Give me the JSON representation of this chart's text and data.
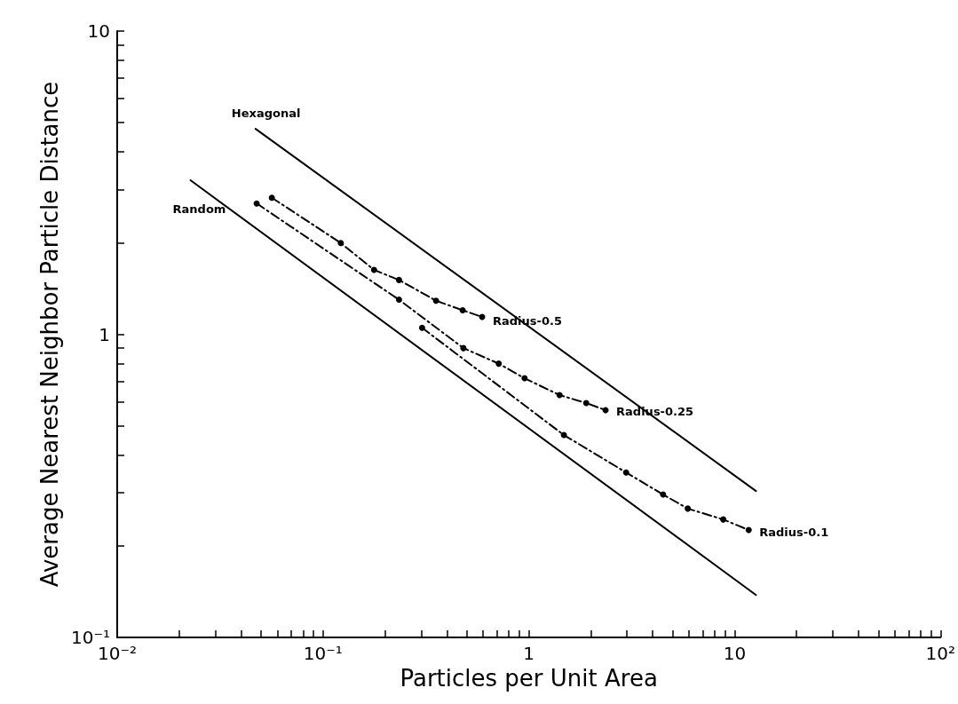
{
  "chart_data": {
    "type": "line",
    "xlabel": "Particles per Unit Area",
    "ylabel": "Average Nearest Neighbor Particle Distance",
    "log": "xy",
    "grid": false,
    "xlim": [
      0.01,
      100
    ],
    "xticks": [
      {
        "value": 0.01,
        "label": "10⁻²"
      },
      {
        "value": 0.1,
        "label": "10⁻¹"
      },
      1,
      10,
      {
        "value": 100,
        "label": "10²"
      }
    ],
    "ylim": [
      0.1,
      10
    ],
    "yticks": [
      {
        "value": 0.1,
        "label": "10⁻¹"
      },
      1,
      10
    ],
    "series": [
      {
        "name": "Hexagonal",
        "color": "#000000",
        "x": [
          0.047,
          12.7
        ],
        "values": [
          4.76,
          0.304
        ],
        "marker": "none",
        "line_style": "solid"
      },
      {
        "name": "Random",
        "color": "#000000",
        "x": [
          0.0227,
          12.7
        ],
        "values": [
          3.22,
          0.138
        ],
        "marker": "none",
        "line_style": "solid"
      },
      {
        "name": "Radius-0.5",
        "color": "#000000",
        "x": [
          0.0564,
          0.122,
          0.177,
          0.234,
          0.354,
          0.477,
          0.593
        ],
        "values": [
          2.82,
          2.0,
          1.63,
          1.51,
          1.29,
          1.2,
          1.14
        ],
        "marker": "circle",
        "line_style": "dashed"
      },
      {
        "name": "Radius-0.25",
        "color": "#000000",
        "x": [
          0.0476,
          0.234,
          0.481,
          0.714,
          0.953,
          1.41,
          1.9,
          2.36
        ],
        "values": [
          2.7,
          1.3,
          0.9,
          0.8,
          0.716,
          0.63,
          0.593,
          0.562
        ],
        "marker": "circle",
        "line_style": "dashed"
      },
      {
        "name": "Radius-0.1",
        "color": "#000000",
        "x": [
          0.303,
          1.48,
          2.97,
          4.49,
          5.92,
          8.8,
          11.7
        ],
        "values": [
          1.05,
          0.465,
          0.35,
          0.296,
          0.266,
          0.245,
          0.226
        ],
        "marker": "circle",
        "line_style": "dashed"
      }
    ]
  }
}
